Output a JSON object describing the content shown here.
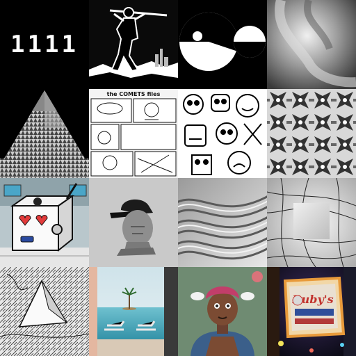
{
  "tiles": [
    {
      "name": "tile-1111",
      "text": "1111"
    },
    {
      "name": "tile-silhouette-figure"
    },
    {
      "name": "tile-geometric-circles"
    },
    {
      "name": "tile-gray-swirl"
    },
    {
      "name": "tile-pyramid-pattern"
    },
    {
      "name": "tile-comic-page",
      "text": "the COMETS files"
    },
    {
      "name": "tile-doodle-characters"
    },
    {
      "name": "tile-tessellation"
    },
    {
      "name": "tile-robot-cube"
    },
    {
      "name": "tile-head-with-cap"
    },
    {
      "name": "tile-wave-lines"
    },
    {
      "name": "tile-warped-grid-square"
    },
    {
      "name": "tile-doodle-pyramid"
    },
    {
      "name": "tile-pool-island"
    },
    {
      "name": "tile-cartoon-character"
    },
    {
      "name": "tile-neon-sign",
      "text": "Ruby's"
    }
  ]
}
